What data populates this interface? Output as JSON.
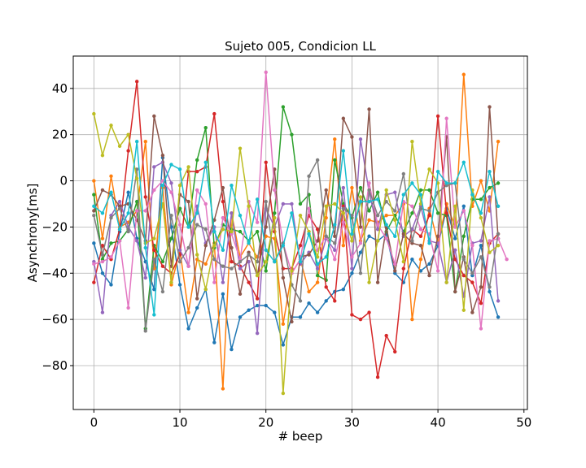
{
  "chart_data": {
    "type": "line",
    "title": "Sujeto 005, Condicion LL",
    "xlabel": "# beep",
    "ylabel": "Asynchrony[ms]",
    "xlim": [
      -2.4,
      50.4
    ],
    "ylim": [
      -99,
      54
    ],
    "xticks": [
      0,
      10,
      20,
      30,
      40,
      50
    ],
    "yticks": [
      -80,
      -60,
      -40,
      -20,
      0,
      20,
      40
    ],
    "grid": true,
    "legend": "none",
    "colors": [
      "#1f77b4",
      "#ff7f0e",
      "#2ca02c",
      "#d62728",
      "#9467bd",
      "#8c564b",
      "#e377c2",
      "#7f7f7f",
      "#bcbd22",
      "#17becf"
    ],
    "series": [
      {
        "color": "#1f77b4",
        "values": [
          -27,
          -40,
          -45,
          -22,
          -5,
          -25,
          -35,
          -47,
          10,
          -20,
          -45,
          -64,
          -55,
          -47,
          -70,
          -49,
          -73,
          -59,
          -56,
          -54,
          -54,
          -57,
          -71,
          -59,
          -59,
          -53,
          -57,
          -52,
          -48,
          -47,
          -40,
          -31,
          -24,
          -26,
          -23,
          -40,
          -44,
          -34,
          -39,
          -36,
          -28,
          -12,
          -25,
          -11,
          -41,
          -28,
          -48,
          -59
        ]
      },
      {
        "color": "#ff7f0e",
        "values": [
          0,
          -25,
          2,
          -20,
          -18,
          -13,
          17,
          -38,
          -3,
          -45,
          -30,
          -57,
          -34,
          -36,
          -27,
          -90,
          -14,
          -33,
          -27,
          -33,
          -24,
          -25,
          -62,
          -40,
          -34,
          -48,
          -44,
          -16,
          18,
          -28,
          -3,
          -26,
          -17,
          -18,
          -15,
          -15,
          -10,
          -60,
          -34,
          -12,
          -27,
          -10,
          -20,
          46,
          -11,
          0,
          -13,
          17
        ]
      },
      {
        "color": "#2ca02c",
        "values": [
          -6,
          -34,
          -27,
          -26,
          -21,
          -9,
          -64,
          -28,
          -35,
          -25,
          -12,
          -20,
          9,
          23,
          -29,
          -19,
          -21,
          -22,
          -26,
          -22,
          -39,
          -14,
          32,
          20,
          -10,
          -6,
          -41,
          -43,
          9,
          -10,
          -16,
          -3,
          -13,
          -5,
          -22,
          -15,
          -22,
          -14,
          -4,
          -4,
          -14,
          -15,
          -48,
          -24,
          -8,
          -8,
          -3,
          -1
        ]
      },
      {
        "color": "#d62728",
        "values": [
          -44,
          -28,
          -34,
          -21,
          13,
          43,
          -7,
          -30,
          -37,
          -40,
          -32,
          4,
          4,
          6,
          29,
          -9,
          -35,
          -37,
          -44,
          -51,
          8,
          -22,
          -38,
          -38,
          -28,
          -15,
          -21,
          -46,
          -52,
          -11,
          -58,
          -60,
          -57,
          -85,
          -67,
          -74,
          -38,
          -21,
          -24,
          -15,
          28,
          -14,
          -34,
          -41,
          -44,
          -53,
          -27,
          -23
        ]
      },
      {
        "color": "#9467bd",
        "values": [
          -35,
          -57,
          -15,
          -9,
          -20,
          -26,
          -42,
          6,
          8,
          -1,
          -30,
          -37,
          -11,
          -27,
          -20,
          -44,
          -14,
          -38,
          -35,
          -66,
          -12,
          -20,
          -10,
          -10,
          -36,
          -31,
          -38,
          -25,
          -30,
          -3,
          -38,
          18,
          -5,
          -21,
          -6,
          -5,
          -24,
          -21,
          -11,
          -26,
          -27,
          -44,
          -30,
          -50,
          -27,
          -26,
          -7,
          -52
        ]
      },
      {
        "color": "#8c564b",
        "values": [
          -13,
          -4,
          -6,
          -11,
          -10,
          -17,
          -26,
          28,
          11,
          -37,
          -6,
          -9,
          -51,
          -28,
          -17,
          -3,
          -29,
          -49,
          -31,
          -41,
          -20,
          5,
          -42,
          -61,
          -33,
          -32,
          -26,
          -4,
          -24,
          27,
          19,
          -20,
          31,
          -44,
          -20,
          -39,
          -23,
          -27,
          -28,
          -41,
          -24,
          19,
          -48,
          -33,
          -57,
          -46,
          32,
          -25
        ]
      },
      {
        "color": "#e377c2",
        "values": [
          -36,
          -35,
          -33,
          -26,
          -55,
          -13,
          -13,
          -4,
          0,
          -5,
          -19,
          -37,
          -4,
          -10,
          -44,
          -16,
          -23,
          -34,
          -9,
          -18,
          47,
          -4,
          -27,
          -40,
          -34,
          -12,
          -30,
          -24,
          -34,
          -18,
          -33,
          -27,
          -1,
          -19,
          -25,
          -36,
          -9,
          -11,
          -21,
          -23,
          -39,
          27,
          -20,
          -13,
          -28,
          -64,
          -26,
          -25,
          -34
        ]
      },
      {
        "color": "#7f7f7f",
        "values": [
          -15,
          -32,
          -16,
          -12,
          -22,
          5,
          -65,
          -34,
          -48,
          -15,
          -35,
          -29,
          -19,
          -21,
          -34,
          -37,
          -38,
          -35,
          -32,
          -35,
          -9,
          -35,
          -27,
          -45,
          -52,
          2,
          9,
          -24,
          -27,
          -12,
          -15,
          -40,
          -4,
          -15,
          -9,
          -13,
          3,
          -26,
          -12,
          -13,
          -5,
          -2,
          -1,
          -34,
          -40,
          -33,
          -46,
          -23
        ]
      },
      {
        "color": "#bcbd22",
        "values": [
          29,
          11,
          24,
          15,
          20,
          1,
          -27,
          -25,
          -10,
          -44,
          -2,
          6,
          -32,
          -47,
          -28,
          -21,
          -22,
          14,
          -11,
          -41,
          -35,
          -16,
          -92,
          -39,
          -15,
          -22,
          -33,
          -11,
          -10,
          -14,
          -26,
          -7,
          -44,
          -26,
          -4,
          -17,
          -35,
          17,
          -10,
          5,
          -1,
          -44,
          -11,
          -56,
          -4,
          -16,
          -31,
          -28
        ]
      },
      {
        "color": "#17becf",
        "values": [
          -11,
          -14,
          -5,
          -21,
          -14,
          17,
          -29,
          -58,
          -2,
          7,
          5,
          -20,
          -14,
          8,
          -22,
          -30,
          -2,
          -15,
          -27,
          -8,
          -30,
          -35,
          -28,
          -14,
          -35,
          -23,
          -36,
          -33,
          -19,
          13,
          -23,
          -9,
          -9,
          -8,
          -19,
          -24,
          -6,
          -1,
          -6,
          -27,
          4,
          -1,
          -1,
          8,
          -6,
          -14,
          4,
          -11
        ]
      }
    ]
  }
}
